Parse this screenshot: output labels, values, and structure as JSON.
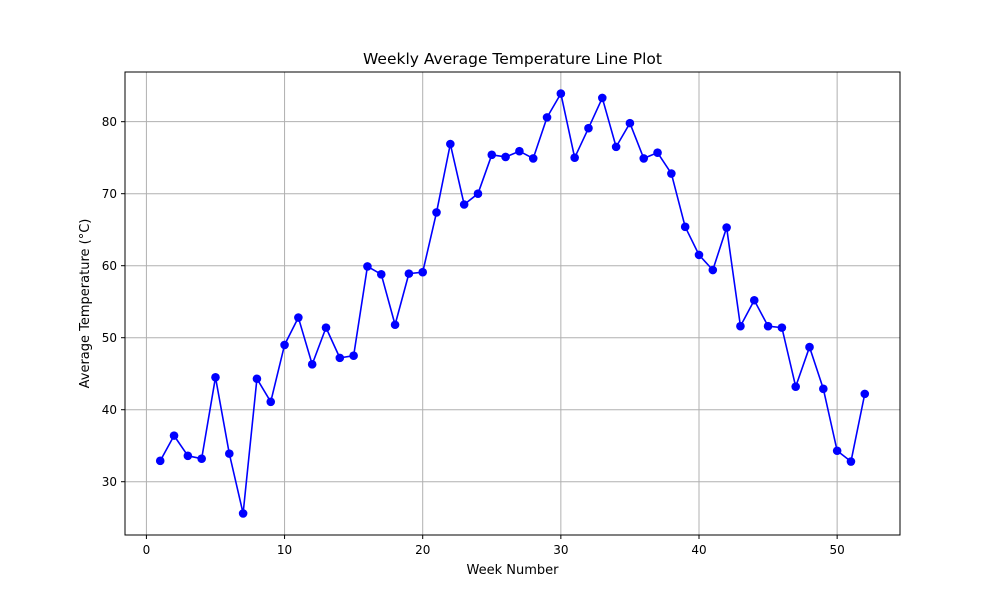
{
  "chart_data": {
    "type": "line",
    "title": "Weekly Average Temperature Line Plot",
    "xlabel": "Week Number",
    "ylabel": "Average Temperature (°C)",
    "xlim": [
      -1.55,
      54.55
    ],
    "ylim": [
      22.6,
      86.9
    ],
    "xticks": [
      0,
      10,
      20,
      30,
      40,
      50
    ],
    "yticks": [
      30,
      40,
      50,
      60,
      70,
      80
    ],
    "grid": true,
    "series": [
      {
        "color": "#0000ff",
        "marker": "circle",
        "x": [
          1,
          2,
          3,
          4,
          5,
          6,
          7,
          8,
          9,
          10,
          11,
          12,
          13,
          14,
          15,
          16,
          17,
          18,
          19,
          20,
          21,
          22,
          23,
          24,
          25,
          26,
          27,
          28,
          29,
          30,
          31,
          32,
          33,
          34,
          35,
          36,
          37,
          38,
          39,
          40,
          41,
          42,
          43,
          44,
          45,
          46,
          47,
          48,
          49,
          50,
          51,
          52
        ],
        "y": [
          32.9,
          36.4,
          33.6,
          33.2,
          44.5,
          33.9,
          25.6,
          44.3,
          41.1,
          49.0,
          52.8,
          46.3,
          51.4,
          47.2,
          47.5,
          59.9,
          58.8,
          51.8,
          58.9,
          59.1,
          67.4,
          76.9,
          68.5,
          70.0,
          75.4,
          75.1,
          75.9,
          74.9,
          80.6,
          83.9,
          75.0,
          79.1,
          83.3,
          76.5,
          79.8,
          74.9,
          75.7,
          72.8,
          65.4,
          61.5,
          59.4,
          65.3,
          51.6,
          55.2,
          51.6,
          51.4,
          43.2,
          48.7,
          42.9,
          34.3,
          32.8,
          42.2
        ]
      }
    ]
  }
}
